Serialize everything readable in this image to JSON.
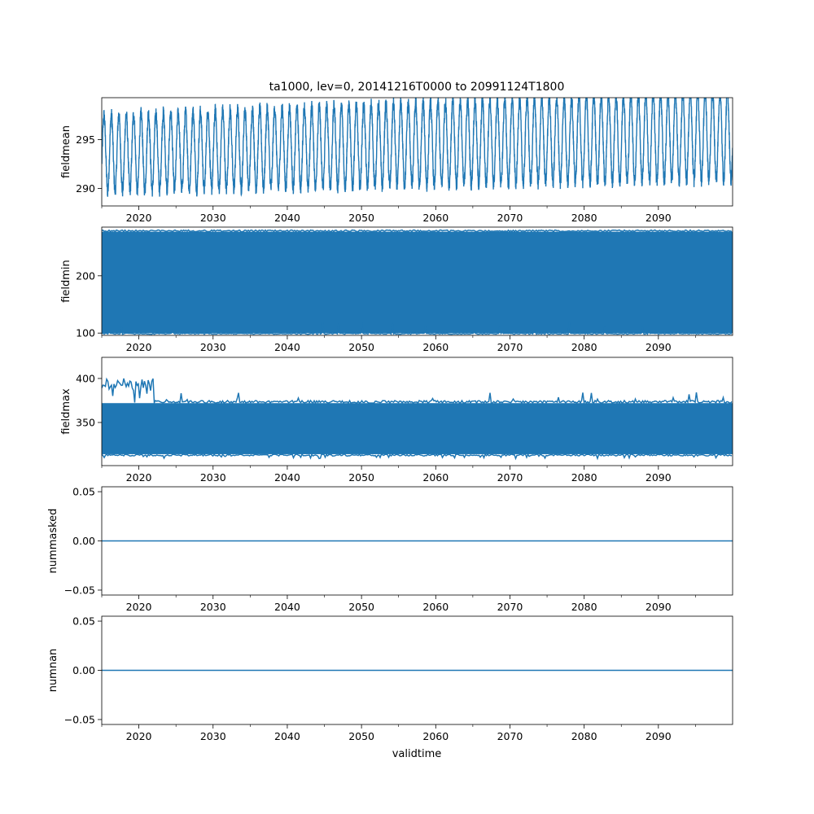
{
  "chart_data": {
    "type": "line",
    "title": "ta1000, lev=0, 20141216T0000 to 20991124T1800",
    "xlabel": "validtime",
    "x_range": [
      2015.0,
      2100.0
    ],
    "x_ticks": [
      "2020",
      "2030",
      "2040",
      "2050",
      "2060",
      "2070",
      "2080",
      "2090"
    ],
    "series_color": "#1f77b4",
    "panels": [
      {
        "ylabel": "fieldmean",
        "ylim": [
          288.2,
          299.3
        ],
        "y_ticks": [
          "290",
          "295"
        ],
        "pattern": "seasonal",
        "seasonal": {
          "mean": 293.6,
          "amplitude": 3.9,
          "noise": 0.7,
          "trend_per_year": 0.022,
          "amp_trend": 0.008
        }
      },
      {
        "ylabel": "fieldmin",
        "ylim": [
          96,
          285
        ],
        "y_ticks": [
          "100",
          "200"
        ],
        "pattern": "band",
        "band": {
          "low": 100,
          "high": 277,
          "low_spikes": 105,
          "high_spikes": 280
        }
      },
      {
        "ylabel": "fieldmax",
        "ylim": [
          301,
          424
        ],
        "y_ticks": [
          "350",
          "400"
        ],
        "pattern": "band",
        "band": {
          "low": 314,
          "high": 372,
          "low_spikes": 309,
          "high_spikes": 385,
          "early_until": 2022.0,
          "early_high": 398
        }
      },
      {
        "ylabel": "nummasked",
        "ylim": [
          -0.055,
          0.055
        ],
        "y_ticks": [
          "−0.05",
          "0.00",
          "0.05"
        ],
        "pattern": "constant",
        "constant": 0.0
      },
      {
        "ylabel": "numnan",
        "ylim": [
          -0.055,
          0.055
        ],
        "y_ticks": [
          "−0.05",
          "0.00",
          "0.05"
        ],
        "pattern": "constant",
        "constant": 0.0
      }
    ]
  }
}
